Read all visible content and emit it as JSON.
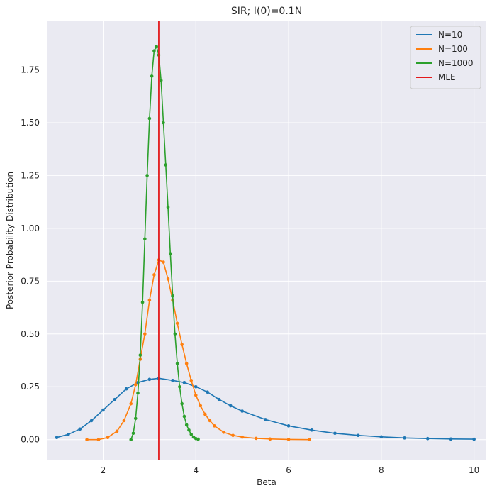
{
  "chart_data": {
    "type": "line",
    "title": "SIR; I(0)=0.1N",
    "xlabel": "Beta",
    "ylabel": "Posterior Probability Distribution",
    "xlim": [
      0.8,
      10.25
    ],
    "ylim": [
      -0.095,
      1.98
    ],
    "x_ticks": [
      2,
      4,
      6,
      8,
      10
    ],
    "y_ticks": [
      0.0,
      0.25,
      0.5,
      0.75,
      1.0,
      1.25,
      1.5,
      1.75
    ],
    "x_tick_labels": [
      "2",
      "4",
      "6",
      "8",
      "10"
    ],
    "y_tick_labels": [
      "0.00",
      "0.25",
      "0.50",
      "0.75",
      "1.00",
      "1.25",
      "1.50",
      "1.75"
    ],
    "grid": true,
    "legend_position": "top-right",
    "legend": [
      "N=10",
      "N=100",
      "N=1000",
      "MLE"
    ],
    "mle_line": {
      "name": "MLE",
      "x": 3.2,
      "color": "#e31a1c"
    },
    "series": [
      {
        "name": "N=10",
        "color": "#1f77b4",
        "x": [
          1.0,
          1.25,
          1.5,
          1.75,
          2.0,
          2.25,
          2.5,
          2.75,
          3.0,
          3.2,
          3.5,
          3.75,
          4.0,
          4.25,
          4.5,
          4.75,
          5.0,
          5.5,
          6.0,
          6.5,
          7.0,
          7.5,
          8.0,
          8.5,
          9.0,
          9.5,
          10.0
        ],
        "values": [
          0.01,
          0.025,
          0.05,
          0.09,
          0.14,
          0.19,
          0.24,
          0.27,
          0.285,
          0.29,
          0.28,
          0.27,
          0.25,
          0.225,
          0.19,
          0.16,
          0.135,
          0.095,
          0.065,
          0.045,
          0.03,
          0.02,
          0.013,
          0.008,
          0.005,
          0.003,
          0.002
        ]
      },
      {
        "name": "N=100",
        "color": "#ff7f0e",
        "x": [
          1.65,
          1.9,
          2.1,
          2.3,
          2.45,
          2.6,
          2.7,
          2.8,
          2.9,
          3.0,
          3.1,
          3.2,
          3.3,
          3.4,
          3.5,
          3.6,
          3.7,
          3.8,
          3.9,
          4.0,
          4.1,
          4.2,
          4.3,
          4.4,
          4.6,
          4.8,
          5.0,
          5.3,
          5.6,
          6.0,
          6.45
        ],
        "values": [
          0.0,
          0.0,
          0.01,
          0.04,
          0.09,
          0.17,
          0.26,
          0.38,
          0.5,
          0.66,
          0.78,
          0.85,
          0.84,
          0.76,
          0.66,
          0.55,
          0.45,
          0.36,
          0.28,
          0.21,
          0.16,
          0.12,
          0.09,
          0.065,
          0.035,
          0.02,
          0.012,
          0.006,
          0.003,
          0.001,
          0.0
        ]
      },
      {
        "name": "N=1000",
        "color": "#2ca02c",
        "x": [
          2.6,
          2.65,
          2.7,
          2.75,
          2.8,
          2.85,
          2.9,
          2.95,
          3.0,
          3.05,
          3.1,
          3.15,
          3.2,
          3.25,
          3.3,
          3.35,
          3.4,
          3.45,
          3.5,
          3.55,
          3.6,
          3.65,
          3.7,
          3.75,
          3.8,
          3.85,
          3.9,
          3.95,
          4.0,
          4.05
        ],
        "values": [
          0.0,
          0.03,
          0.1,
          0.22,
          0.4,
          0.65,
          0.95,
          1.25,
          1.52,
          1.72,
          1.84,
          1.86,
          1.82,
          1.7,
          1.5,
          1.3,
          1.1,
          0.88,
          0.68,
          0.5,
          0.36,
          0.25,
          0.17,
          0.11,
          0.07,
          0.045,
          0.025,
          0.012,
          0.005,
          0.002
        ]
      }
    ]
  }
}
